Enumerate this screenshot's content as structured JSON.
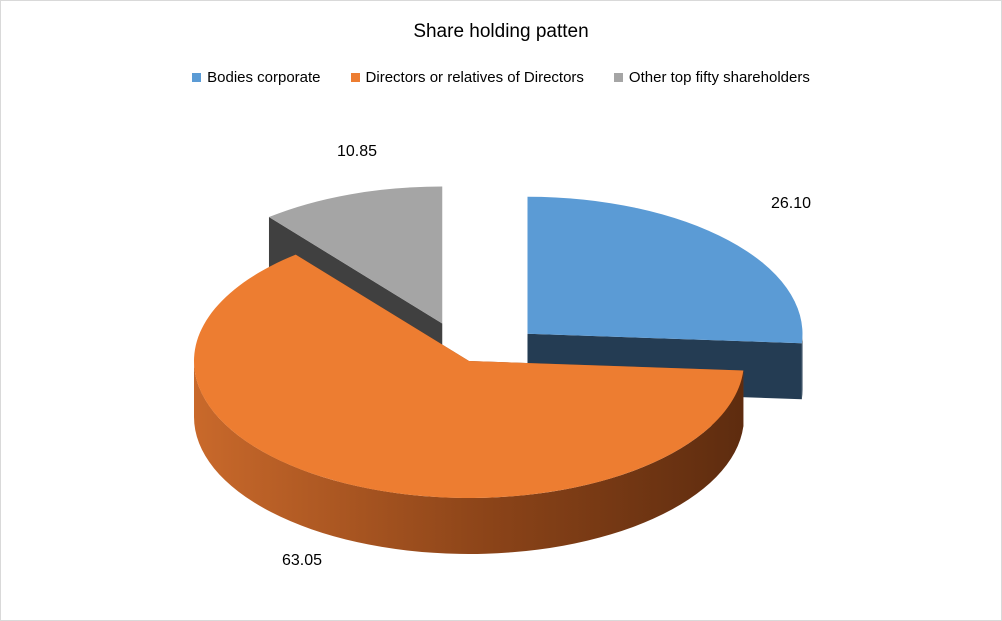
{
  "chart_data": {
    "type": "pie",
    "title": "Share holding patten",
    "legend_position": "top",
    "categories": [
      "Bodies corporate",
      "Directors or relatives of Directors",
      "Other top fifty shareholders"
    ],
    "values": [
      26.1,
      63.05,
      10.85
    ],
    "labels": [
      "26.10",
      "63.05",
      "10.85"
    ],
    "colors": {
      "top": [
        "#5b9bd5",
        "#ed7d31",
        "#a5a5a5"
      ],
      "side": [
        "#243c53",
        "#7a3a14",
        "#404040"
      ]
    },
    "exploded": [
      true,
      false,
      true
    ],
    "three_d": true
  }
}
